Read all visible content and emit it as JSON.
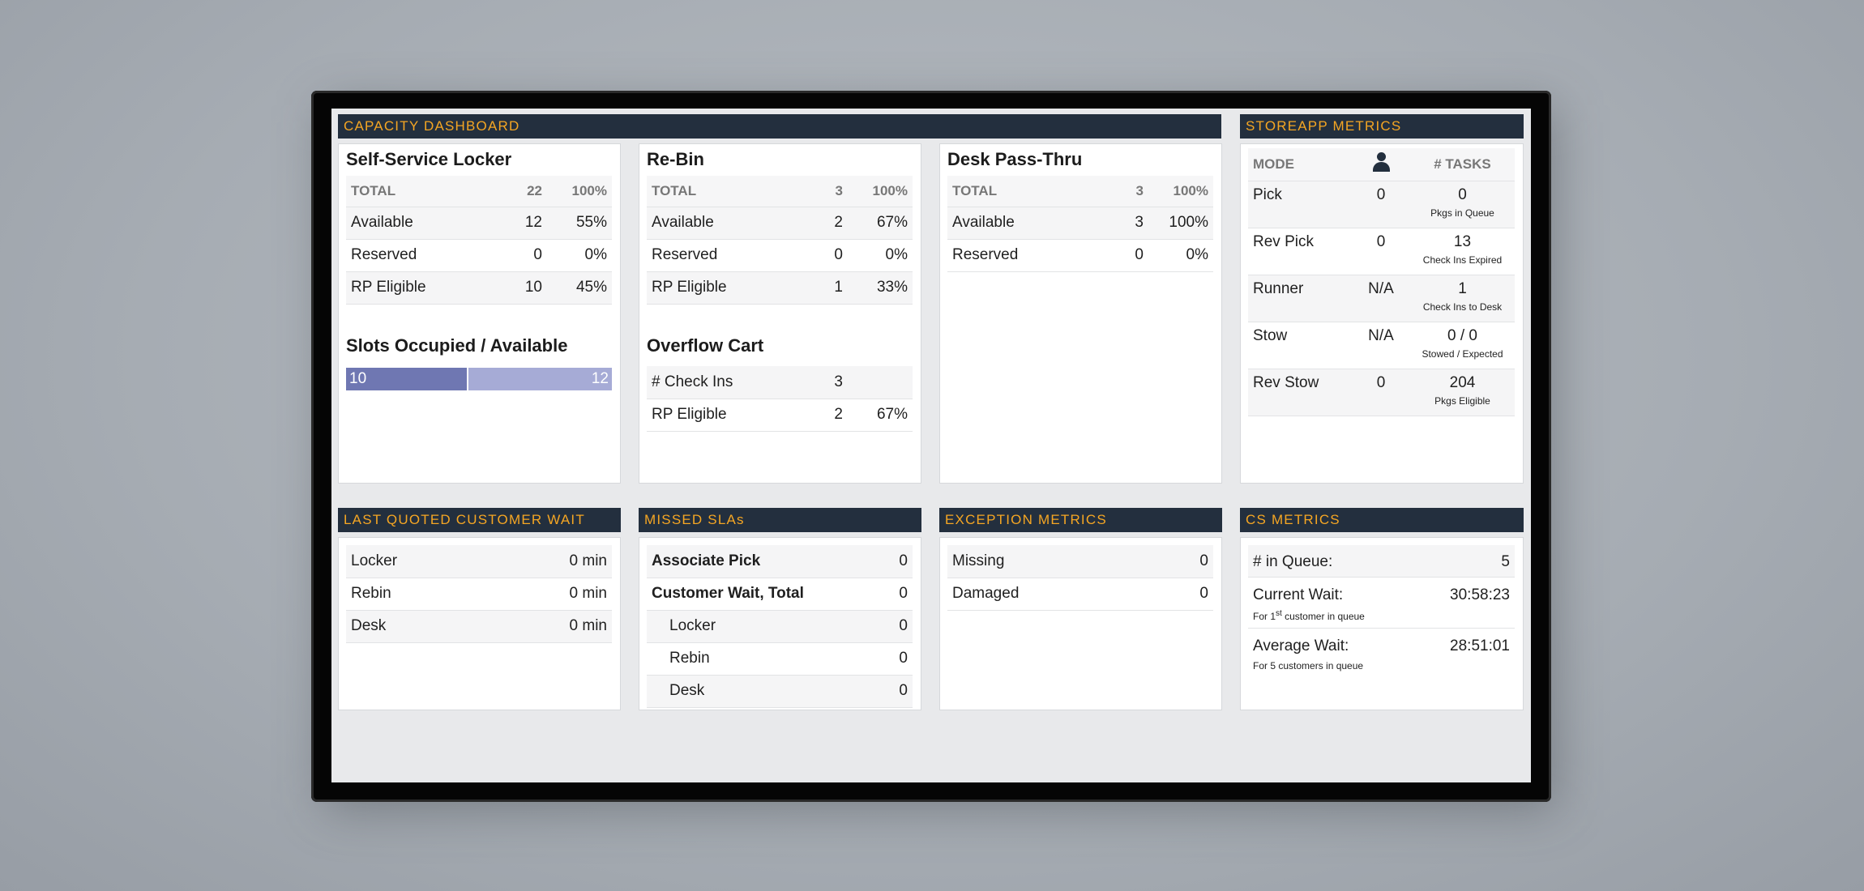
{
  "capacity": {
    "header": "Capacity Dashboard",
    "locker": {
      "title": "Self-Service Locker",
      "rows": [
        {
          "label": "TOTAL",
          "count": "22",
          "pct": "100%"
        },
        {
          "label": "Available",
          "count": "12",
          "pct": "55%"
        },
        {
          "label": "Reserved",
          "count": "0",
          "pct": "0%"
        },
        {
          "label": "RP Eligible",
          "count": "10",
          "pct": "45%"
        }
      ],
      "slots_title": "Slots Occupied / Available",
      "slots": {
        "occupied": 10,
        "available": 12,
        "occupied_label": "10",
        "available_label": "12"
      }
    },
    "rebin": {
      "title": "Re-Bin",
      "rows": [
        {
          "label": "TOTAL",
          "count": "3",
          "pct": "100%"
        },
        {
          "label": "Available",
          "count": "2",
          "pct": "67%"
        },
        {
          "label": "Reserved",
          "count": "0",
          "pct": "0%"
        },
        {
          "label": "RP Eligible",
          "count": "1",
          "pct": "33%"
        }
      ],
      "overflow_title": "Overflow Cart",
      "overflow_rows": [
        {
          "label": "# Check Ins",
          "count": "3",
          "pct": ""
        },
        {
          "label": "RP Eligible",
          "count": "2",
          "pct": "67%"
        }
      ]
    },
    "desk": {
      "title": "Desk Pass-Thru",
      "rows": [
        {
          "label": "TOTAL",
          "count": "3",
          "pct": "100%"
        },
        {
          "label": "Available",
          "count": "3",
          "pct": "100%"
        },
        {
          "label": "Reserved",
          "count": "0",
          "pct": "0%"
        }
      ]
    }
  },
  "storeapp": {
    "header": "StoreApp Metrics",
    "col_mode": "MODE",
    "col_person_icon": "person-icon",
    "col_tasks": "# TASKS",
    "rows": [
      {
        "mode": "Pick",
        "assoc": "0",
        "tasks": "0",
        "note": "Pkgs in Queue"
      },
      {
        "mode": "Rev Pick",
        "assoc": "0",
        "tasks": "13",
        "note": "Check Ins Expired"
      },
      {
        "mode": "Runner",
        "assoc": "N/A",
        "tasks": "1",
        "note": "Check Ins to Desk"
      },
      {
        "mode": "Stow",
        "assoc": "N/A",
        "tasks": "0 / 0",
        "note": "Stowed / Expected"
      },
      {
        "mode": "Rev Stow",
        "assoc": "0",
        "tasks": "204",
        "note": "Pkgs Eligible"
      }
    ]
  },
  "wait": {
    "header": "Last Quoted Customer Wait",
    "rows": [
      {
        "label": "Locker",
        "value": "0 min"
      },
      {
        "label": "Rebin",
        "value": "0 min"
      },
      {
        "label": "Desk",
        "value": "0 min"
      }
    ]
  },
  "slas": {
    "header": "MISSED SLAs",
    "rows": [
      {
        "label": "Associate Pick",
        "value": "0"
      },
      {
        "label": "Customer Wait, Total",
        "value": "0"
      },
      {
        "label": "Locker",
        "value": "0"
      },
      {
        "label": "Rebin",
        "value": "0"
      },
      {
        "label": "Desk",
        "value": "0"
      }
    ]
  },
  "exception": {
    "header": "Exception Metrics",
    "rows": [
      {
        "label": "Missing",
        "value": "0"
      },
      {
        "label": "Damaged",
        "value": "0"
      }
    ]
  },
  "cs": {
    "header": "CS Metrics",
    "queue_label": "# in Queue:",
    "queue_value": "5",
    "current_label": "Current Wait:",
    "current_value": "30:58:23",
    "current_note_pre": "For 1",
    "current_note_sup": "st",
    "current_note_post": " customer in queue",
    "average_label": "Average Wait:",
    "average_value": "28:51:01",
    "average_note": "For 5 customers in queue"
  }
}
